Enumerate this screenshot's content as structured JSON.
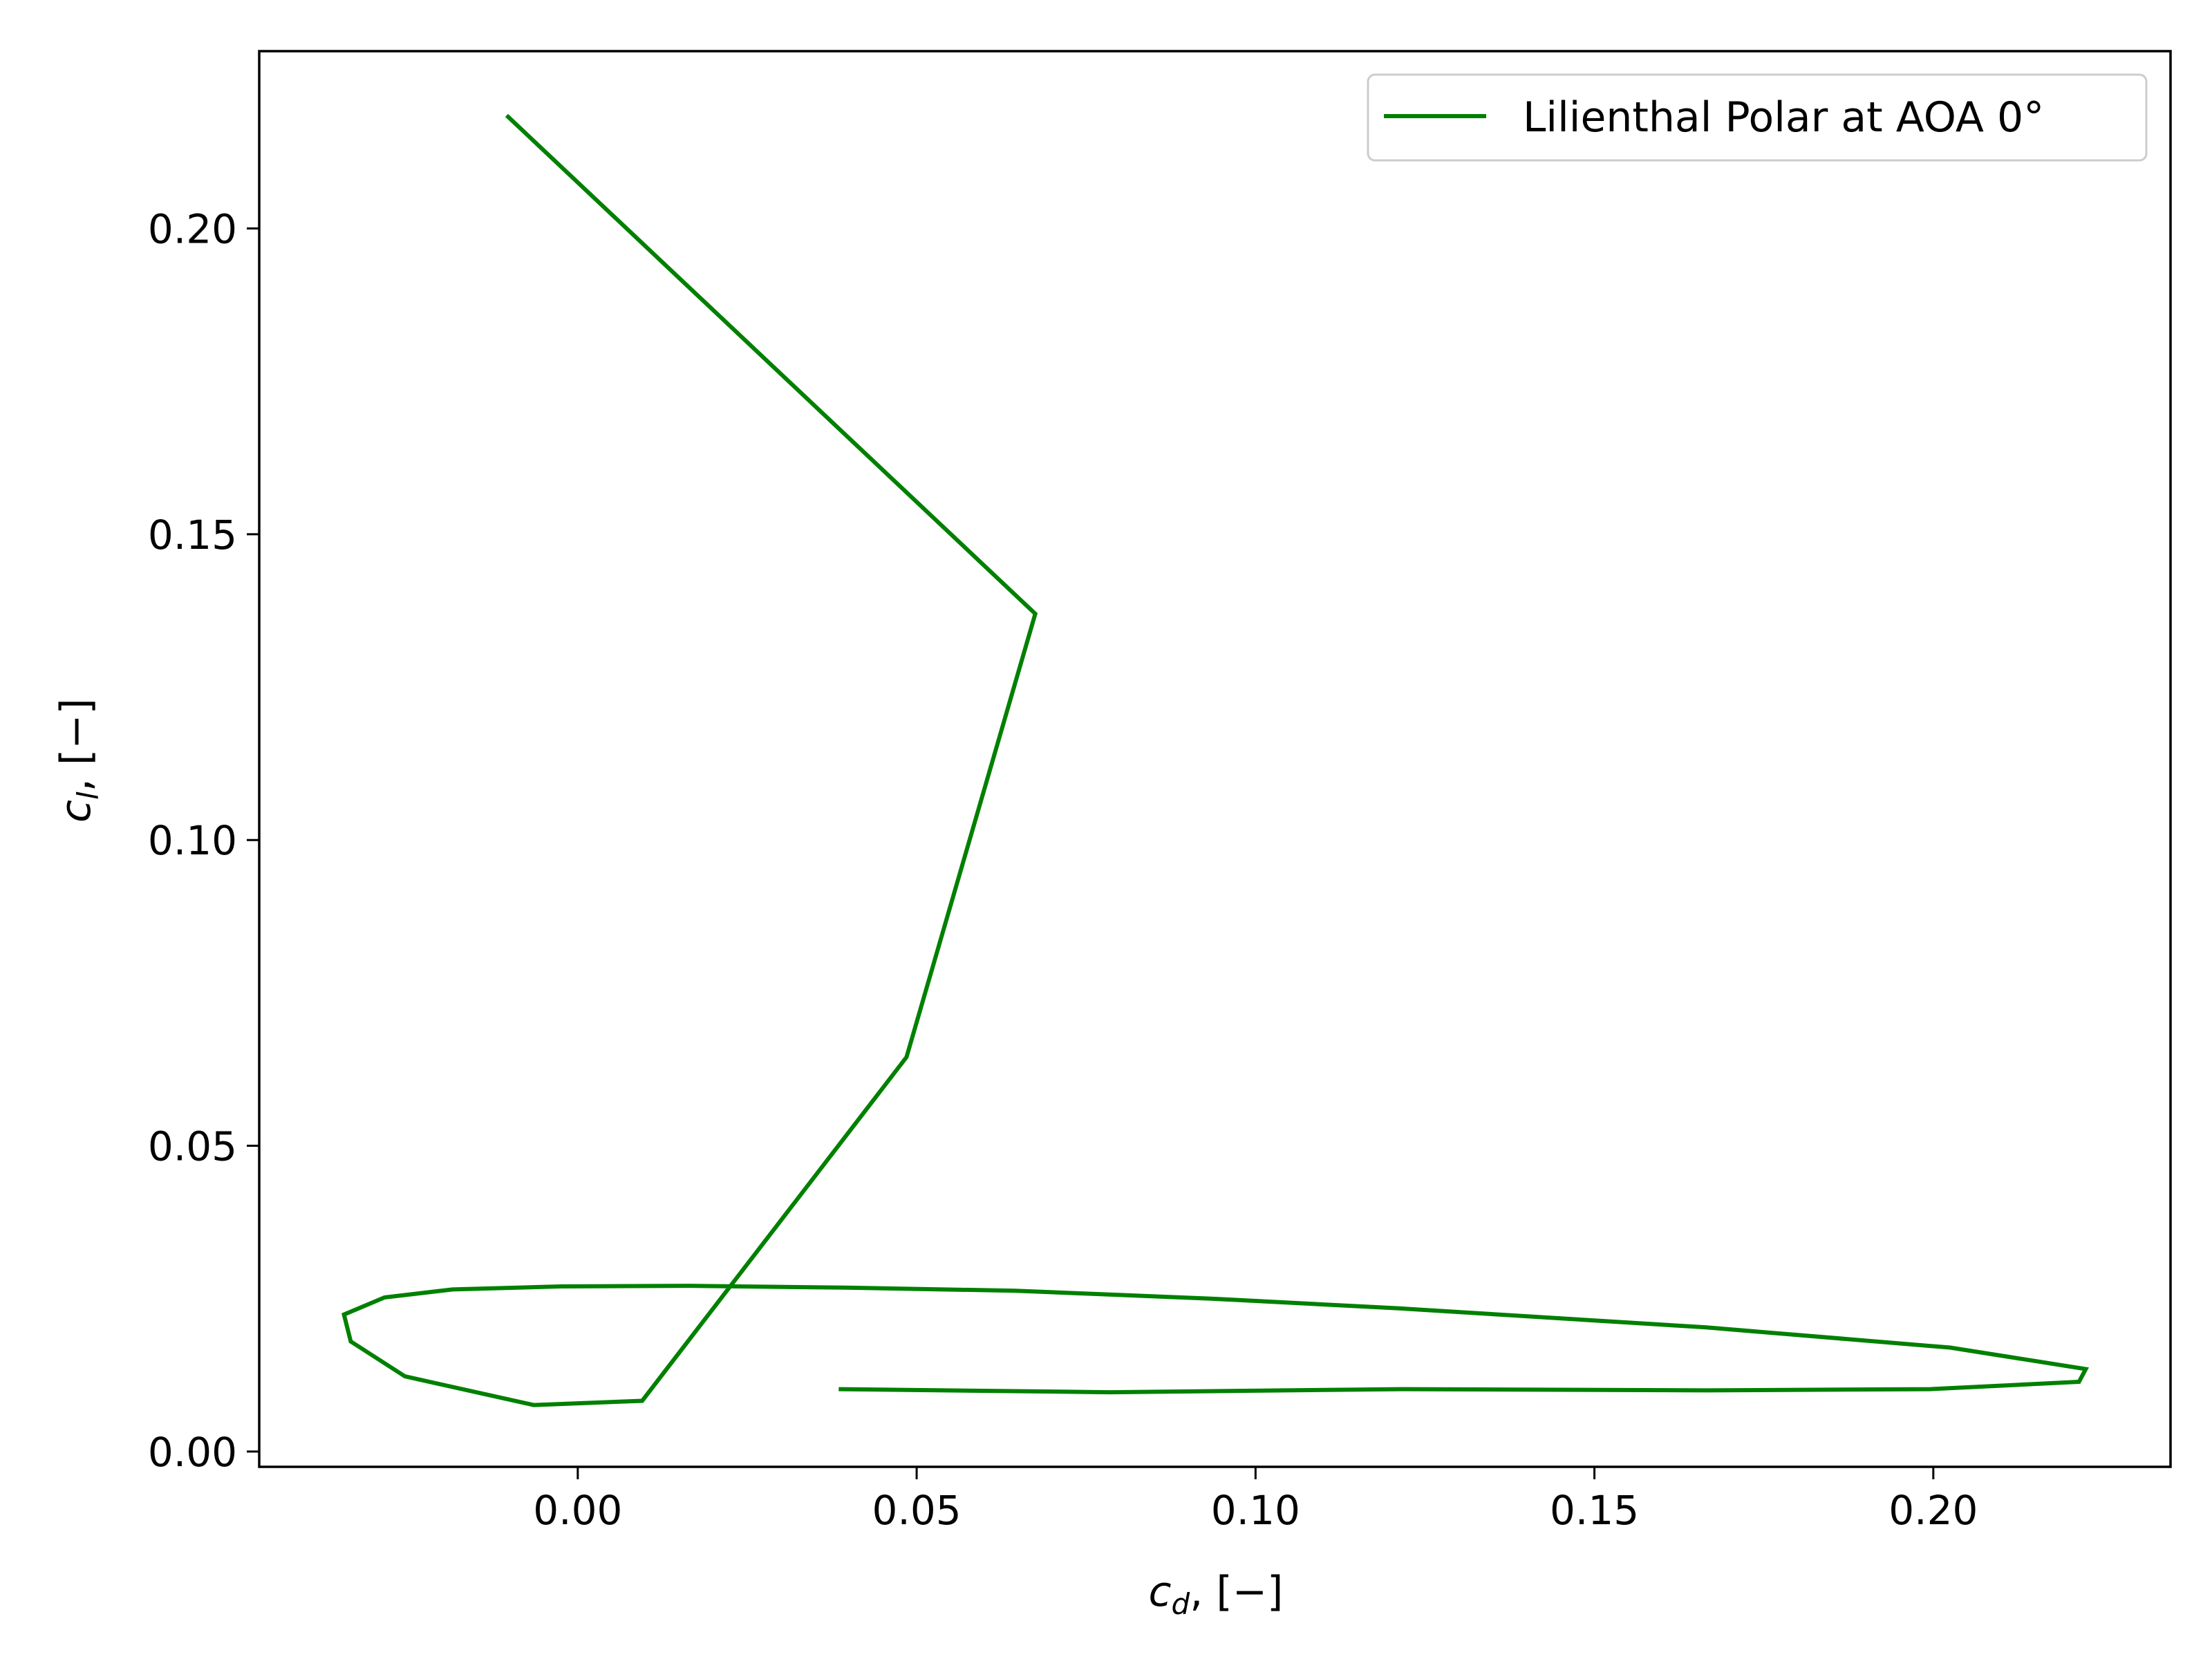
{
  "chart_data": {
    "type": "line",
    "title": "",
    "xlabel": "c_d, [−]",
    "ylabel": "c_l, [−]",
    "xlim": [
      -0.047,
      0.235
    ],
    "ylim": [
      -0.0025,
      0.229
    ],
    "xticks": [
      0.0,
      0.05,
      0.1,
      0.15,
      0.2
    ],
    "xtick_labels": [
      "0.00",
      "0.05",
      "0.10",
      "0.15",
      "0.20"
    ],
    "yticks": [
      0.0,
      0.05,
      0.1,
      0.15,
      0.2
    ],
    "ytick_labels": [
      "0.00",
      "0.05",
      "0.10",
      "0.15",
      "0.20"
    ],
    "grid": false,
    "legend_position": "top-right",
    "series": [
      {
        "name": "Lilienthal Polar at AOA 0°",
        "color": "#008000",
        "x": [
          -0.0105,
          0.0675,
          0.0485,
          0.0095,
          -0.0065,
          -0.0255,
          -0.0335,
          -0.0345,
          -0.0285,
          -0.0185,
          -0.0025,
          0.0165,
          0.0395,
          0.0645,
          0.0935,
          0.1215,
          0.1665,
          0.2025,
          0.2225,
          0.2215,
          0.1995,
          0.1665,
          0.1215,
          0.0785,
          0.0385
        ],
        "y": [
          0.2185,
          0.137,
          0.0645,
          0.0083,
          0.0076,
          0.0123,
          0.018,
          0.0224,
          0.0252,
          0.0265,
          0.027,
          0.0271,
          0.0268,
          0.0263,
          0.025,
          0.0234,
          0.0203,
          0.017,
          0.0135,
          0.0114,
          0.0102,
          0.01,
          0.0102,
          0.0097,
          0.0102
        ]
      }
    ]
  }
}
